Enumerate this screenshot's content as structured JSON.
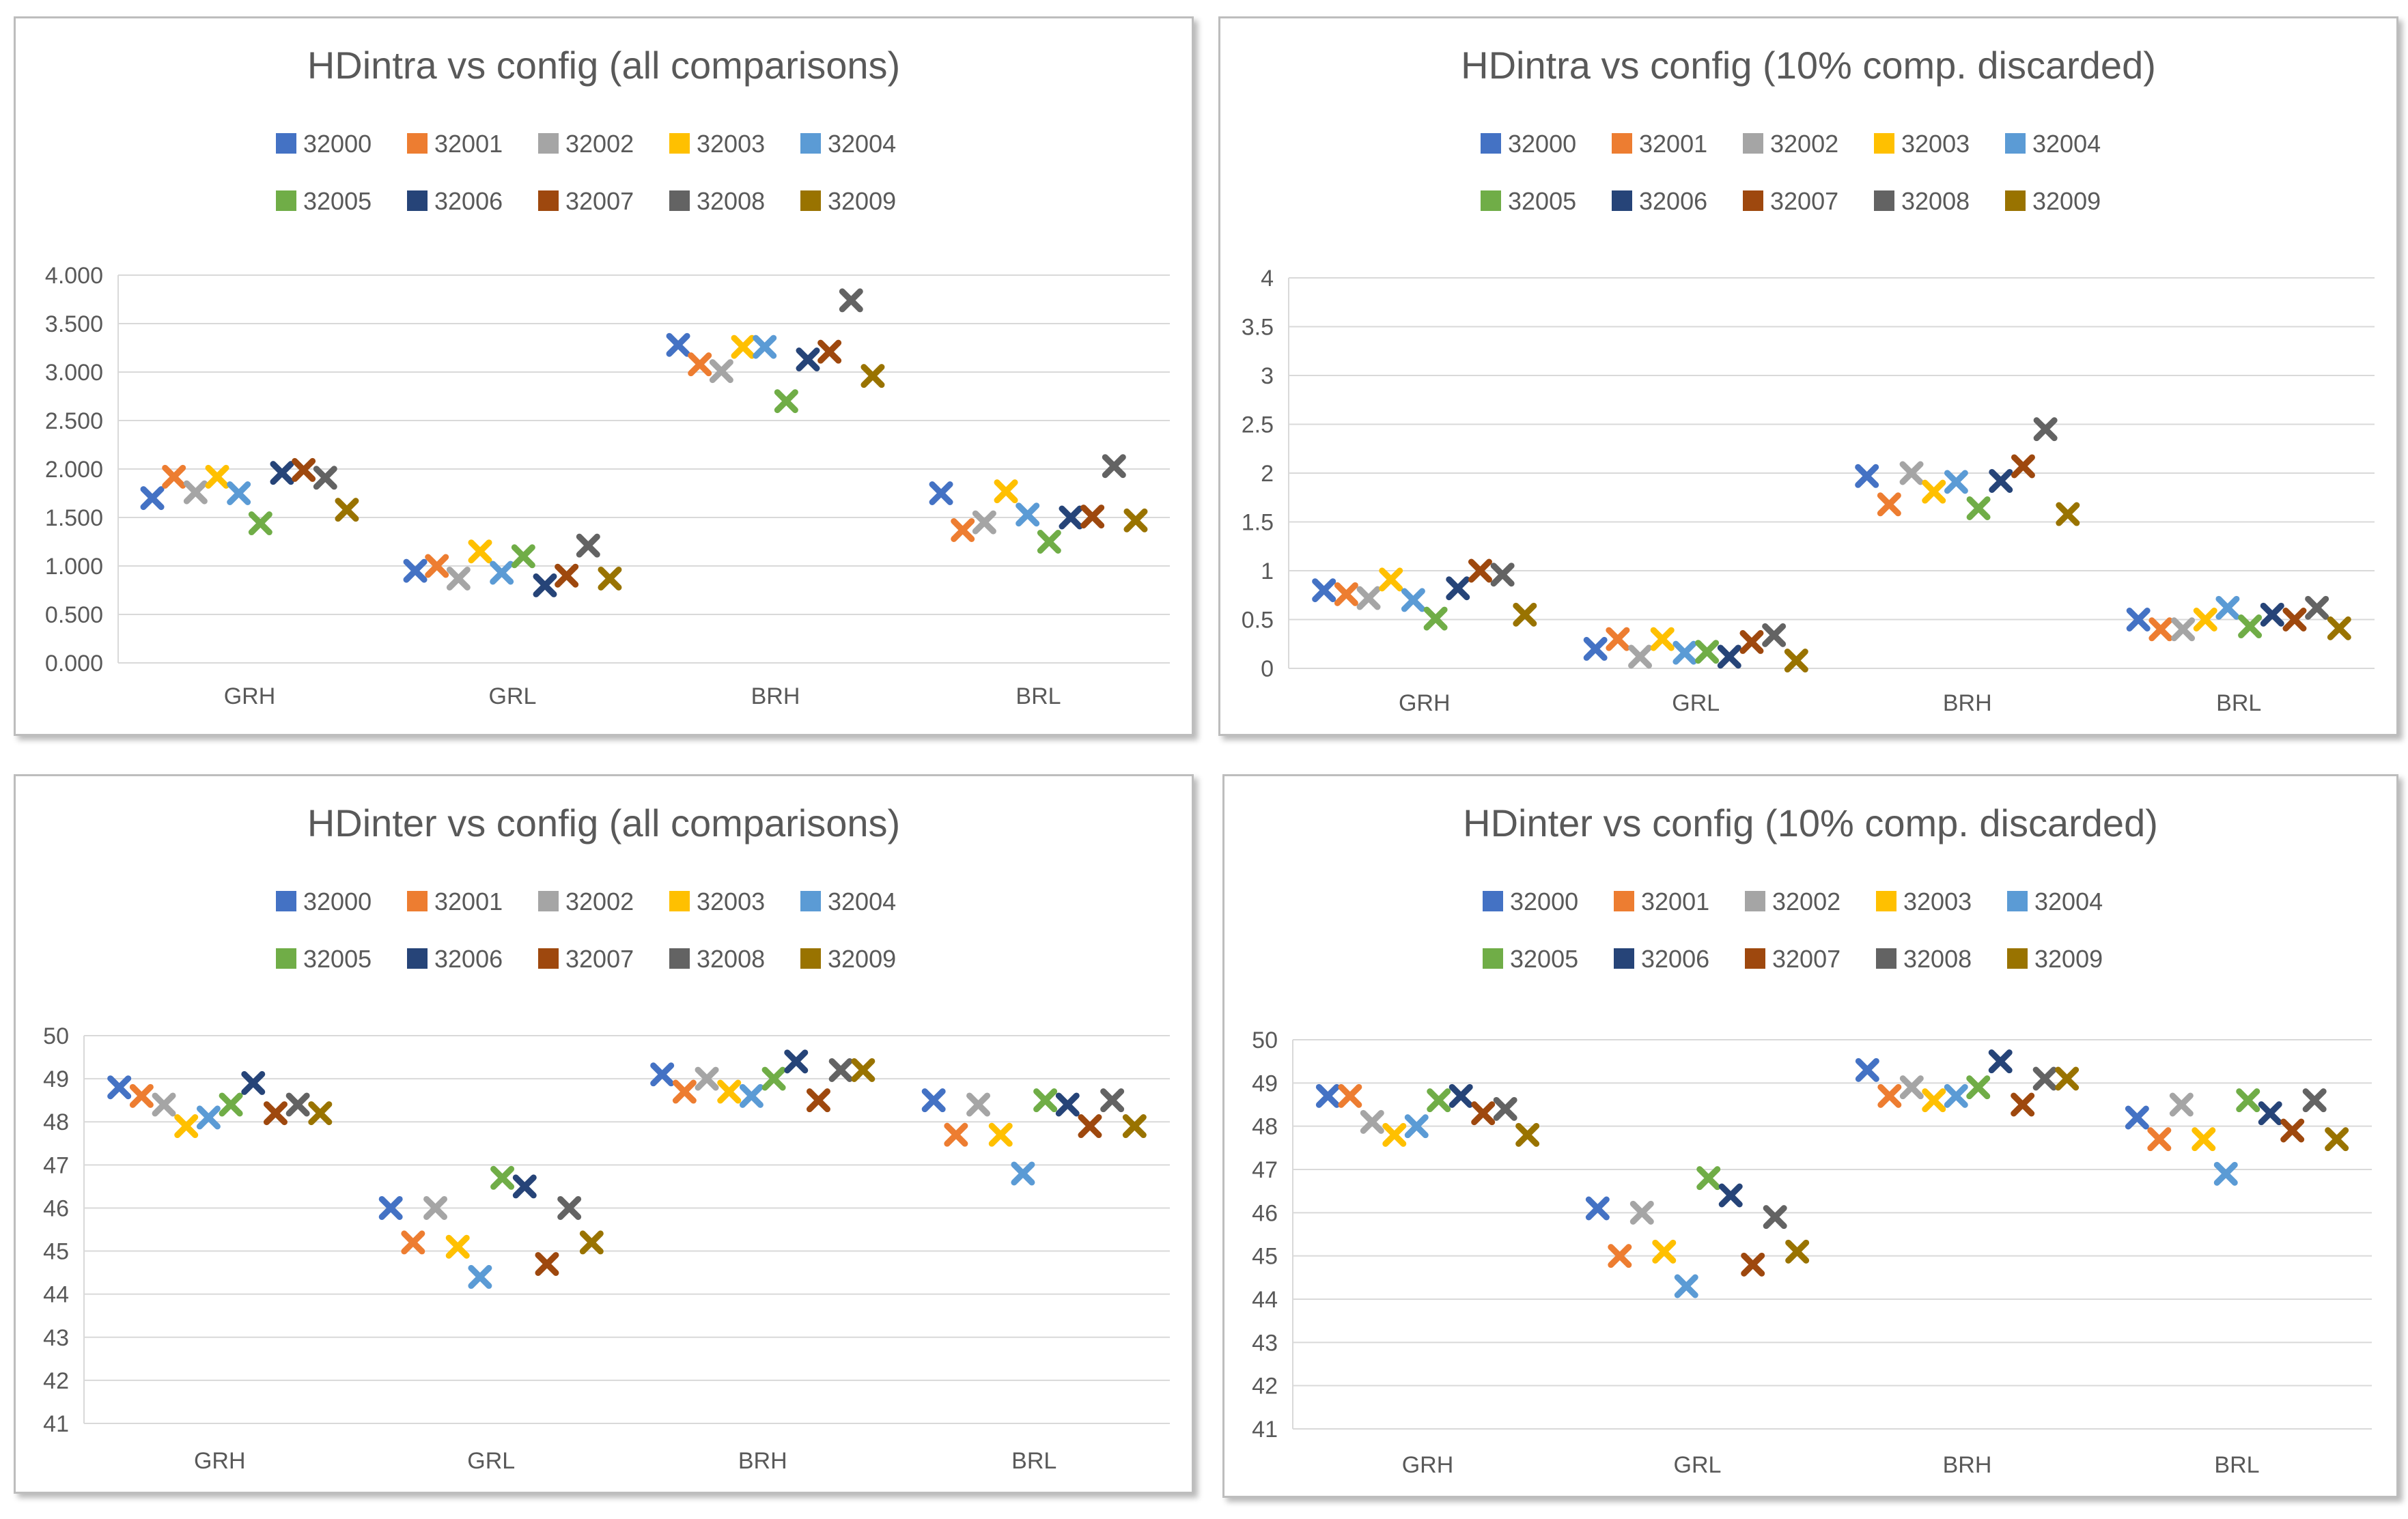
{
  "series_names": [
    "32000",
    "32001",
    "32002",
    "32003",
    "32004",
    "32005",
    "32006",
    "32007",
    "32008",
    "32009"
  ],
  "series_colors": [
    "#4472C4",
    "#ED7D31",
    "#A5A5A5",
    "#FFC000",
    "#5B9BD5",
    "#70AD47",
    "#264478",
    "#9E480E",
    "#636363",
    "#997300"
  ],
  "chart_data": [
    {
      "type": "scatter",
      "title": "HDintra vs config (all comparisons)",
      "categories": [
        "GRH",
        "GRL",
        "BRH",
        "BRL"
      ],
      "ylim": [
        0,
        4
      ],
      "yticks": [
        "0.000",
        "0.500",
        "1.000",
        "1.500",
        "2.000",
        "2.500",
        "3.000",
        "3.500",
        "4.000"
      ],
      "grid": true,
      "legend": "top",
      "series": [
        {
          "name": "32000",
          "values": [
            1.7,
            0.95,
            3.28,
            1.75
          ]
        },
        {
          "name": "32001",
          "values": [
            1.92,
            1.0,
            3.08,
            1.37
          ]
        },
        {
          "name": "32002",
          "values": [
            1.76,
            0.87,
            3.01,
            1.45
          ]
        },
        {
          "name": "32003",
          "values": [
            1.92,
            1.15,
            3.26,
            1.77
          ]
        },
        {
          "name": "32004",
          "values": [
            1.75,
            0.93,
            3.26,
            1.53
          ]
        },
        {
          "name": "32005",
          "values": [
            1.44,
            1.1,
            2.7,
            1.25
          ]
        },
        {
          "name": "32006",
          "values": [
            1.96,
            0.8,
            3.13,
            1.5
          ]
        },
        {
          "name": "32007",
          "values": [
            1.99,
            0.9,
            3.21,
            1.51
          ]
        },
        {
          "name": "32008",
          "values": [
            1.91,
            1.21,
            3.74,
            2.03
          ]
        },
        {
          "name": "32009",
          "values": [
            1.58,
            0.87,
            2.96,
            1.47
          ]
        }
      ]
    },
    {
      "type": "scatter",
      "title": "HDintra vs config (10% comp. discarded)",
      "categories": [
        "GRH",
        "GRL",
        "BRH",
        "BRL"
      ],
      "ylim": [
        0,
        4
      ],
      "yticks": [
        "0",
        "0.5",
        "1",
        "1.5",
        "2",
        "2.5",
        "3",
        "3.5",
        "4"
      ],
      "grid": true,
      "legend": "top",
      "series": [
        {
          "name": "32000",
          "values": [
            0.8,
            0.2,
            1.97,
            0.5
          ]
        },
        {
          "name": "32001",
          "values": [
            0.76,
            0.3,
            1.68,
            0.4
          ]
        },
        {
          "name": "32002",
          "values": [
            0.72,
            0.12,
            2.0,
            0.4
          ]
        },
        {
          "name": "32003",
          "values": [
            0.91,
            0.3,
            1.81,
            0.5
          ]
        },
        {
          "name": "32004",
          "values": [
            0.7,
            0.16,
            1.91,
            0.62
          ]
        },
        {
          "name": "32005",
          "values": [
            0.51,
            0.17,
            1.64,
            0.43
          ]
        },
        {
          "name": "32006",
          "values": [
            0.82,
            0.12,
            1.92,
            0.55
          ]
        },
        {
          "name": "32007",
          "values": [
            1.0,
            0.27,
            2.07,
            0.5
          ]
        },
        {
          "name": "32008",
          "values": [
            0.96,
            0.34,
            2.45,
            0.62
          ]
        },
        {
          "name": "32009",
          "values": [
            0.55,
            0.08,
            1.58,
            0.41
          ]
        }
      ]
    },
    {
      "type": "scatter",
      "title": "HDinter vs config (all comparisons)",
      "categories": [
        "GRH",
        "GRL",
        "BRH",
        "BRL"
      ],
      "ylim": [
        41,
        50
      ],
      "yticks": [
        "41",
        "42",
        "43",
        "44",
        "45",
        "46",
        "47",
        "48",
        "49",
        "50"
      ],
      "grid": true,
      "legend": "top",
      "series": [
        {
          "name": "32000",
          "values": [
            48.8,
            46.0,
            49.1,
            48.5
          ]
        },
        {
          "name": "32001",
          "values": [
            48.6,
            45.2,
            48.7,
            47.7
          ]
        },
        {
          "name": "32002",
          "values": [
            48.4,
            46.0,
            49.0,
            48.4
          ]
        },
        {
          "name": "32003",
          "values": [
            47.9,
            45.1,
            48.7,
            47.7
          ]
        },
        {
          "name": "32004",
          "values": [
            48.1,
            44.4,
            48.6,
            46.8
          ]
        },
        {
          "name": "32005",
          "values": [
            48.4,
            46.7,
            49.0,
            48.5
          ]
        },
        {
          "name": "32006",
          "values": [
            48.9,
            46.5,
            49.4,
            48.4
          ]
        },
        {
          "name": "32007",
          "values": [
            48.2,
            44.7,
            48.5,
            47.9
          ]
        },
        {
          "name": "32008",
          "values": [
            48.4,
            46.0,
            49.2,
            48.5
          ]
        },
        {
          "name": "32009",
          "values": [
            48.2,
            45.2,
            49.2,
            47.9
          ]
        }
      ]
    },
    {
      "type": "scatter",
      "title": "HDinter vs config (10% comp. discarded)",
      "categories": [
        "GRH",
        "GRL",
        "BRH",
        "BRL"
      ],
      "ylim": [
        41,
        50
      ],
      "yticks": [
        "41",
        "42",
        "43",
        "44",
        "45",
        "46",
        "47",
        "48",
        "49",
        "50"
      ],
      "grid": true,
      "legend": "top",
      "series": [
        {
          "name": "32000",
          "values": [
            48.7,
            46.1,
            49.3,
            48.2
          ]
        },
        {
          "name": "32001",
          "values": [
            48.7,
            45.0,
            48.7,
            47.7
          ]
        },
        {
          "name": "32002",
          "values": [
            48.1,
            46.0,
            48.9,
            48.5
          ]
        },
        {
          "name": "32003",
          "values": [
            47.8,
            45.1,
            48.6,
            47.7
          ]
        },
        {
          "name": "32004",
          "values": [
            48.0,
            44.3,
            48.7,
            46.9
          ]
        },
        {
          "name": "32005",
          "values": [
            48.6,
            46.8,
            48.9,
            48.6
          ]
        },
        {
          "name": "32006",
          "values": [
            48.7,
            46.4,
            49.5,
            48.3
          ]
        },
        {
          "name": "32007",
          "values": [
            48.3,
            44.8,
            48.5,
            47.9
          ]
        },
        {
          "name": "32008",
          "values": [
            48.4,
            45.9,
            49.1,
            48.6
          ]
        },
        {
          "name": "32009",
          "values": [
            47.8,
            45.1,
            49.1,
            47.7
          ]
        }
      ]
    }
  ]
}
